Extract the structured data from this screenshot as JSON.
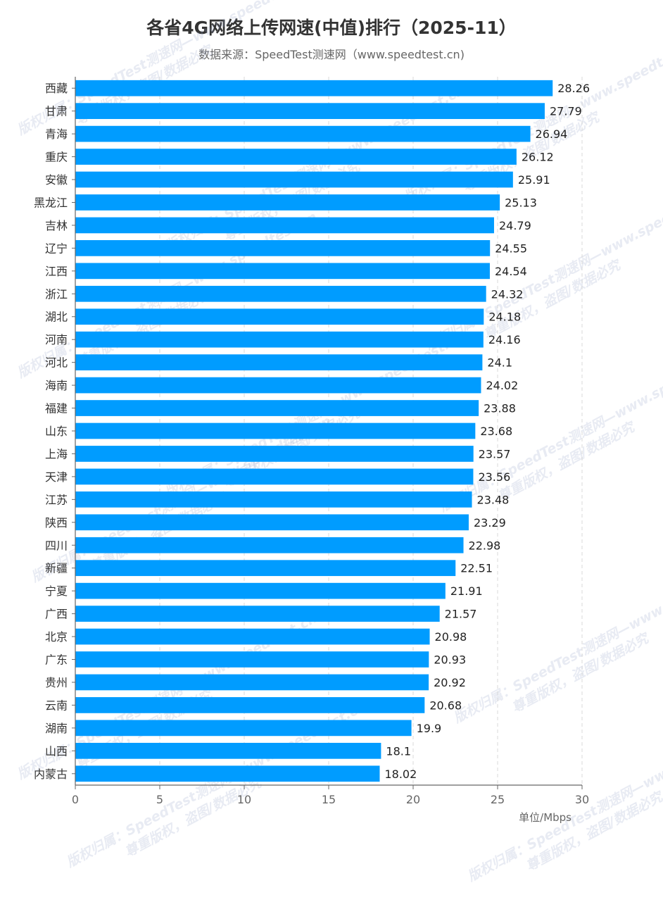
{
  "chart_data": {
    "type": "bar",
    "orientation": "horizontal",
    "title": "各省4G网络上传网速(中值)排行（2025-11）",
    "subtitle": "数据来源：SpeedTest测速网（www.speedtest.cn)",
    "unit_label": "单位/Mbps",
    "bar_color": "#009cff",
    "categories": [
      "西藏",
      "甘肃",
      "青海",
      "重庆",
      "安徽",
      "黑龙江",
      "吉林",
      "辽宁",
      "江西",
      "浙江",
      "湖北",
      "河南",
      "河北",
      "海南",
      "福建",
      "山东",
      "上海",
      "天津",
      "江苏",
      "陕西",
      "四川",
      "新疆",
      "宁夏",
      "广西",
      "北京",
      "广东",
      "贵州",
      "云南",
      "湖南",
      "山西",
      "内蒙古"
    ],
    "values": [
      28.26,
      27.79,
      26.94,
      26.12,
      25.91,
      25.13,
      24.79,
      24.55,
      24.54,
      24.32,
      24.18,
      24.16,
      24.1,
      24.02,
      23.88,
      23.68,
      23.57,
      23.56,
      23.48,
      23.29,
      22.98,
      22.51,
      21.91,
      21.57,
      20.98,
      20.93,
      20.92,
      20.68,
      19.9,
      18.1,
      18.02
    ],
    "xlim": [
      0,
      30
    ],
    "xticks": [
      "0",
      "5",
      "10",
      "15",
      "20",
      "25",
      "30"
    ],
    "grid": "vertical dashed"
  },
  "watermark": {
    "line1": "版权归属：SpeedTest测速网—www.speedtest.cn",
    "line2": "尊重版权，盗图/数据必究"
  }
}
